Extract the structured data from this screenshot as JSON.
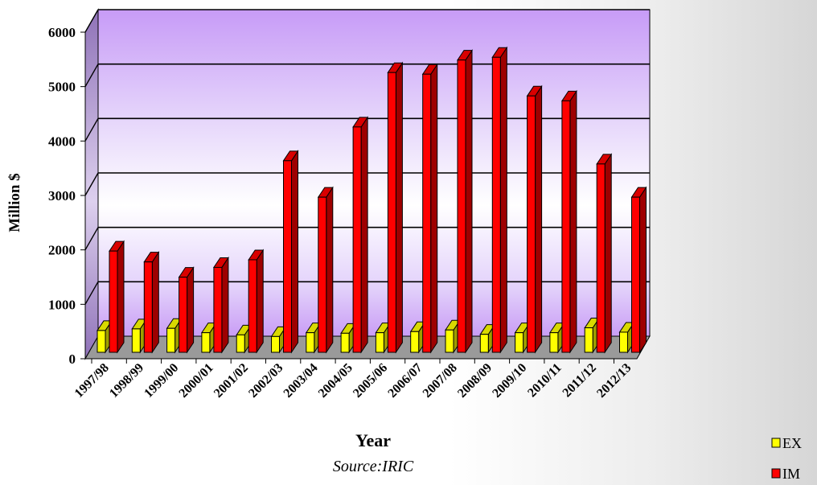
{
  "chart_data": {
    "type": "bar",
    "categories": [
      "1997/98",
      "1998/99",
      "1999/00",
      "2000/01",
      "2001/02",
      "2002/03",
      "2003/04",
      "2004/05",
      "2005/06",
      "2006/07",
      "2007/08",
      "2008/09",
      "2009/10",
      "2010/11",
      "2011/12",
      "2012/13"
    ],
    "series": [
      {
        "name": "EX",
        "color": "#ffff00",
        "values": [
          400,
          430,
          440,
          360,
          320,
          290,
          360,
          350,
          360,
          380,
          410,
          330,
          360,
          360,
          450,
          370
        ]
      },
      {
        "name": "IM",
        "color": "#ff0000",
        "values": [
          1860,
          1660,
          1380,
          1560,
          1700,
          3520,
          2850,
          4140,
          5140,
          5110,
          5370,
          5420,
          4710,
          4620,
          3460,
          2850
        ]
      }
    ],
    "xlabel": "Year",
    "ylabel": "Million $",
    "ylim": [
      0,
      6000
    ],
    "yticks": [
      "0",
      "1000",
      "2000",
      "3000",
      "4000",
      "5000",
      "6000"
    ],
    "grid": true,
    "legend_position": "bottom-right",
    "source": "Source:IRIC"
  }
}
